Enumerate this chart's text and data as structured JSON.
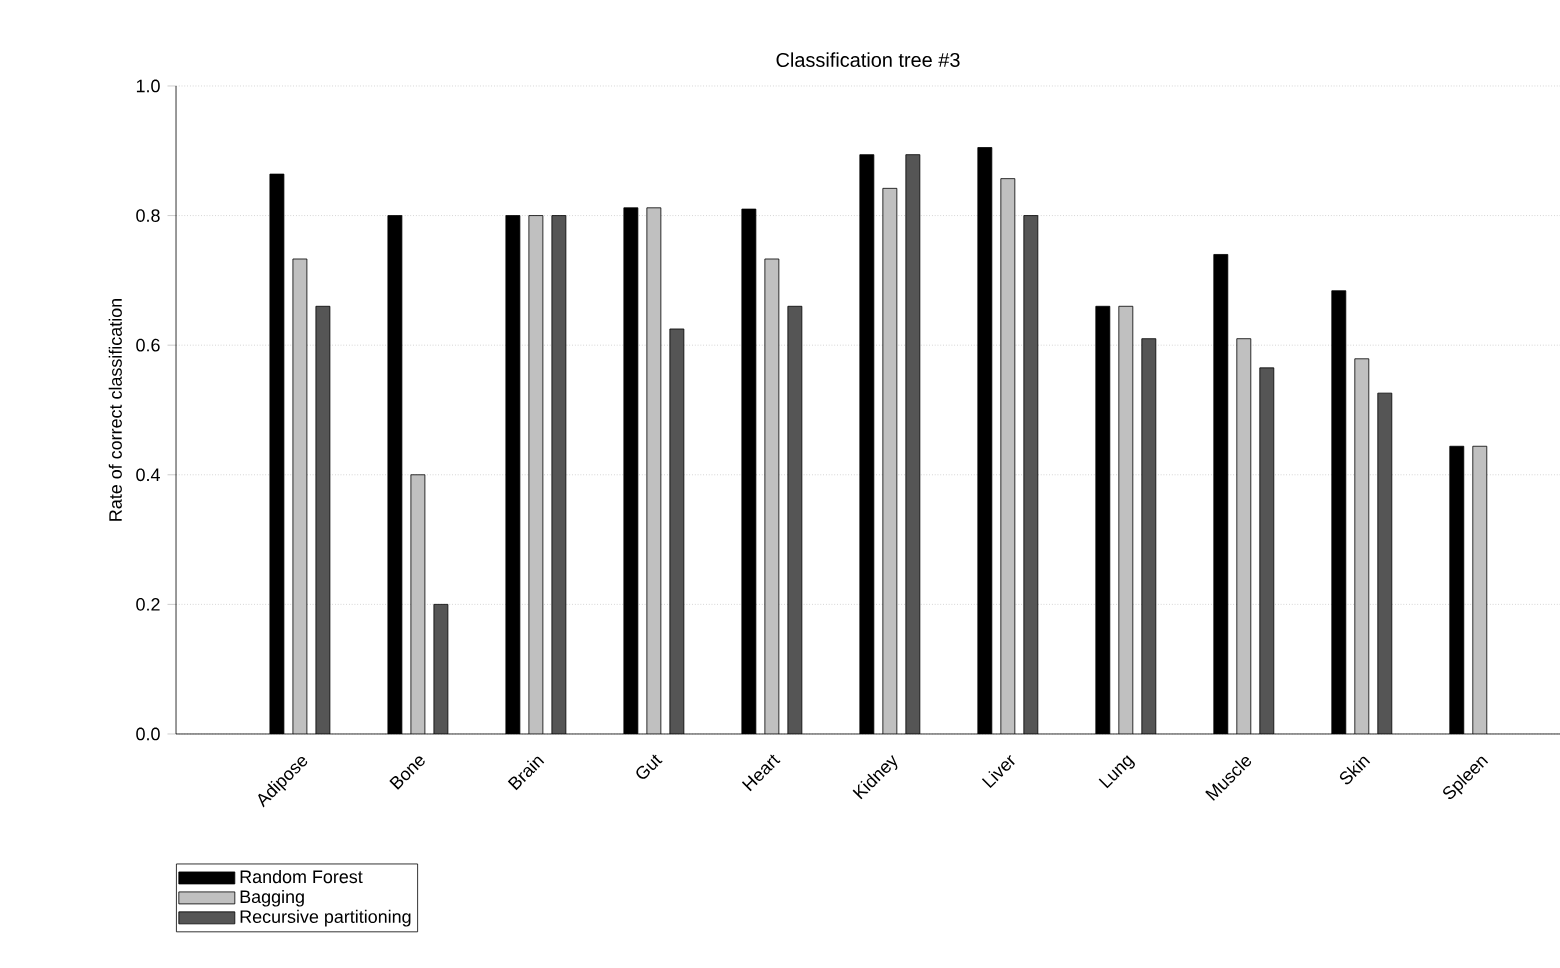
{
  "chart_data": {
    "type": "bar",
    "title": "Classification tree #3",
    "ylabel": "Rate of correct classification",
    "categories": [
      "Adipose",
      "Bone",
      "Brain",
      "Gut",
      "Heart",
      "Kidney",
      "Liver",
      "Lung",
      "Muscle",
      "Skin",
      "Spleen"
    ],
    "series": [
      {
        "name": "Random Forest",
        "color": "#000000",
        "values": [
          0.864,
          0.8,
          0.8,
          0.812,
          0.81,
          0.894,
          0.905,
          0.66,
          0.74,
          0.684,
          0.444
        ]
      },
      {
        "name": "Bagging",
        "color": "#c0c0c0",
        "values": [
          0.733,
          0.4,
          0.8,
          0.812,
          0.733,
          0.842,
          0.857,
          0.66,
          0.61,
          0.579,
          0.444
        ]
      },
      {
        "name": "Recursive partitioning",
        "color": "#555555",
        "values": [
          0.66,
          0.2,
          0.8,
          0.625,
          0.66,
          0.894,
          0.8,
          0.61,
          0.565,
          0.526,
          null
        ]
      }
    ],
    "ylim": [
      0,
      1
    ],
    "yticks": [
      {
        "value": 0,
        "label": "0.0"
      },
      {
        "value": 0.2,
        "label": "0.2"
      },
      {
        "value": 0.4,
        "label": "0.4"
      },
      {
        "value": 0.6,
        "label": "0.6"
      },
      {
        "value": 0.8,
        "label": "0.8"
      },
      {
        "value": 1,
        "label": "1.0"
      }
    ],
    "grid": "y",
    "legend": "bottom left"
  }
}
